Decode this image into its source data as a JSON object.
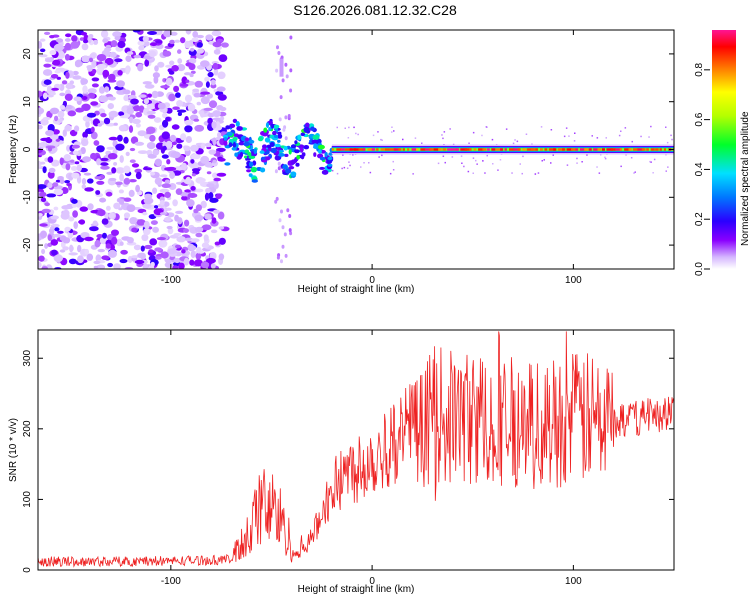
{
  "title": "S126.2026.081.12.32.C28",
  "chart_data": [
    {
      "id": "spectrogram",
      "type": "heatmap",
      "xlabel": "Height of straight line (km)",
      "ylabel": "Frequency (Hz)",
      "xlim": [
        -166,
        150
      ],
      "ylim": [
        -25,
        25
      ],
      "xticks": [
        -100,
        0,
        100
      ],
      "yticks": [
        20,
        10,
        0,
        -10,
        -20
      ],
      "colorbar": {
        "label": "Normalized spectral amplitude",
        "range": [
          0,
          0.96
        ],
        "ticks": [
          0.0,
          0.2,
          0.4,
          0.6,
          0.8
        ],
        "colormap": [
          "#ffffff",
          "#d5b6ff",
          "#8a00ff",
          "#2a00ff",
          "#0077ff",
          "#00e0ff",
          "#00ff2a",
          "#b4ff00",
          "#ffff00",
          "#ff7a00",
          "#ff0000",
          "#ff1493"
        ]
      },
      "features": [
        {
          "name": "noise",
          "x_range": [
            -166,
            -73
          ],
          "freq_range": [
            -25,
            25
          ],
          "amplitude": 0.1
        },
        {
          "name": "transition",
          "x_range": [
            -73,
            -20
          ],
          "freq_range": [
            -6,
            6
          ],
          "amplitude": 0.35
        },
        {
          "name": "carrier",
          "x_range": [
            -20,
            150
          ],
          "freq_center": 0,
          "amplitude": 0.92
        }
      ]
    },
    {
      "id": "snr",
      "type": "line",
      "xlabel": "Height of straight line (km)",
      "ylabel": "SNR (10 * v/v)",
      "xlim": [
        -166,
        150
      ],
      "ylim": [
        0,
        340
      ],
      "xticks": [
        -100,
        0,
        100
      ],
      "yticks": [
        0,
        100,
        200,
        300
      ],
      "color": "#ee2222",
      "series": [
        {
          "name": "SNR",
          "x": [
            -166,
            -130,
            -100,
            -80,
            -70,
            -62,
            -55,
            -48,
            -42,
            -38,
            -30,
            -22,
            -15,
            -8,
            0,
            8,
            15,
            22,
            30,
            40,
            60,
            80,
            100,
            120,
            140,
            150
          ],
          "y": [
            12,
            12,
            13,
            14,
            15,
            50,
            90,
            85,
            50,
            20,
            45,
            100,
            135,
            145,
            160,
            175,
            190,
            205,
            220,
            215,
            215,
            205,
            215,
            210,
            220,
            225
          ]
        }
      ]
    }
  ]
}
